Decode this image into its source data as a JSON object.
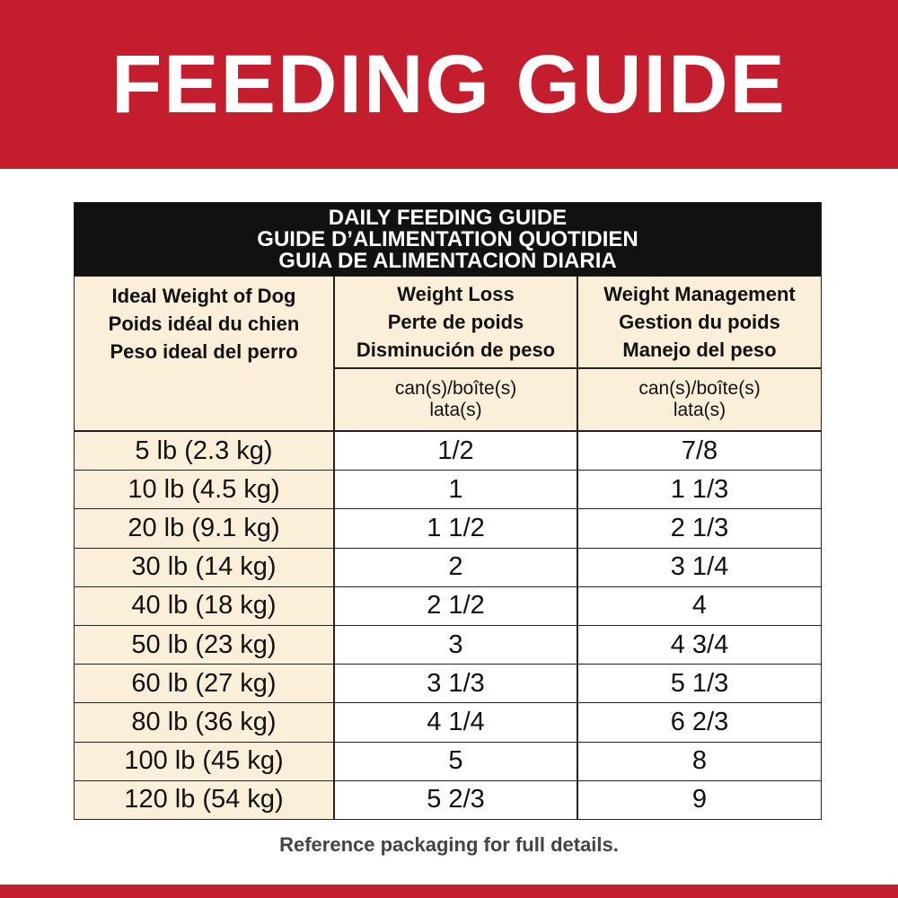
{
  "header": {
    "title": "FEEDING GUIDE"
  },
  "table": {
    "title": [
      "DAILY FEEDING GUIDE",
      "GUIDE D’ALIMENTATION QUOTIDIEN",
      "GUIA DE ALIMENTACION DIARIA"
    ],
    "columns": [
      [
        "Ideal Weight of Dog",
        "Poids idéal du chien",
        "Peso ideal del perro"
      ],
      [
        "Weight Loss",
        "Perte de poids",
        "Disminución de peso"
      ],
      [
        "Weight Management",
        "Gestion du poids",
        "Manejo del peso"
      ]
    ],
    "units": [
      [
        "can(s)/boîte(s)",
        "lata(s)"
      ],
      [
        "can(s)/boîte(s)",
        "lata(s)"
      ]
    ],
    "rows": [
      [
        "5 lb (2.3 kg)",
        "1/2",
        "7/8"
      ],
      [
        "10 lb (4.5 kg)",
        "1",
        "1 1/3"
      ],
      [
        "20 lb (9.1 kg)",
        "1 1/2",
        "2 1/3"
      ],
      [
        "30 lb (14 kg)",
        "2",
        "3 1/4"
      ],
      [
        "40 lb (18 kg)",
        "2 1/2",
        "4"
      ],
      [
        "50 lb (23 kg)",
        "3",
        "4 3/4"
      ],
      [
        "60 lb (27 kg)",
        "3 1/3",
        "5 1/3"
      ],
      [
        "80 lb (36 kg)",
        "4 1/4",
        "6 2/3"
      ],
      [
        "100 lb (45 kg)",
        "5",
        "8"
      ],
      [
        "120 lb (54 kg)",
        "5 2/3",
        "9"
      ]
    ]
  },
  "footer": {
    "note": "Reference packaging for full details."
  }
}
